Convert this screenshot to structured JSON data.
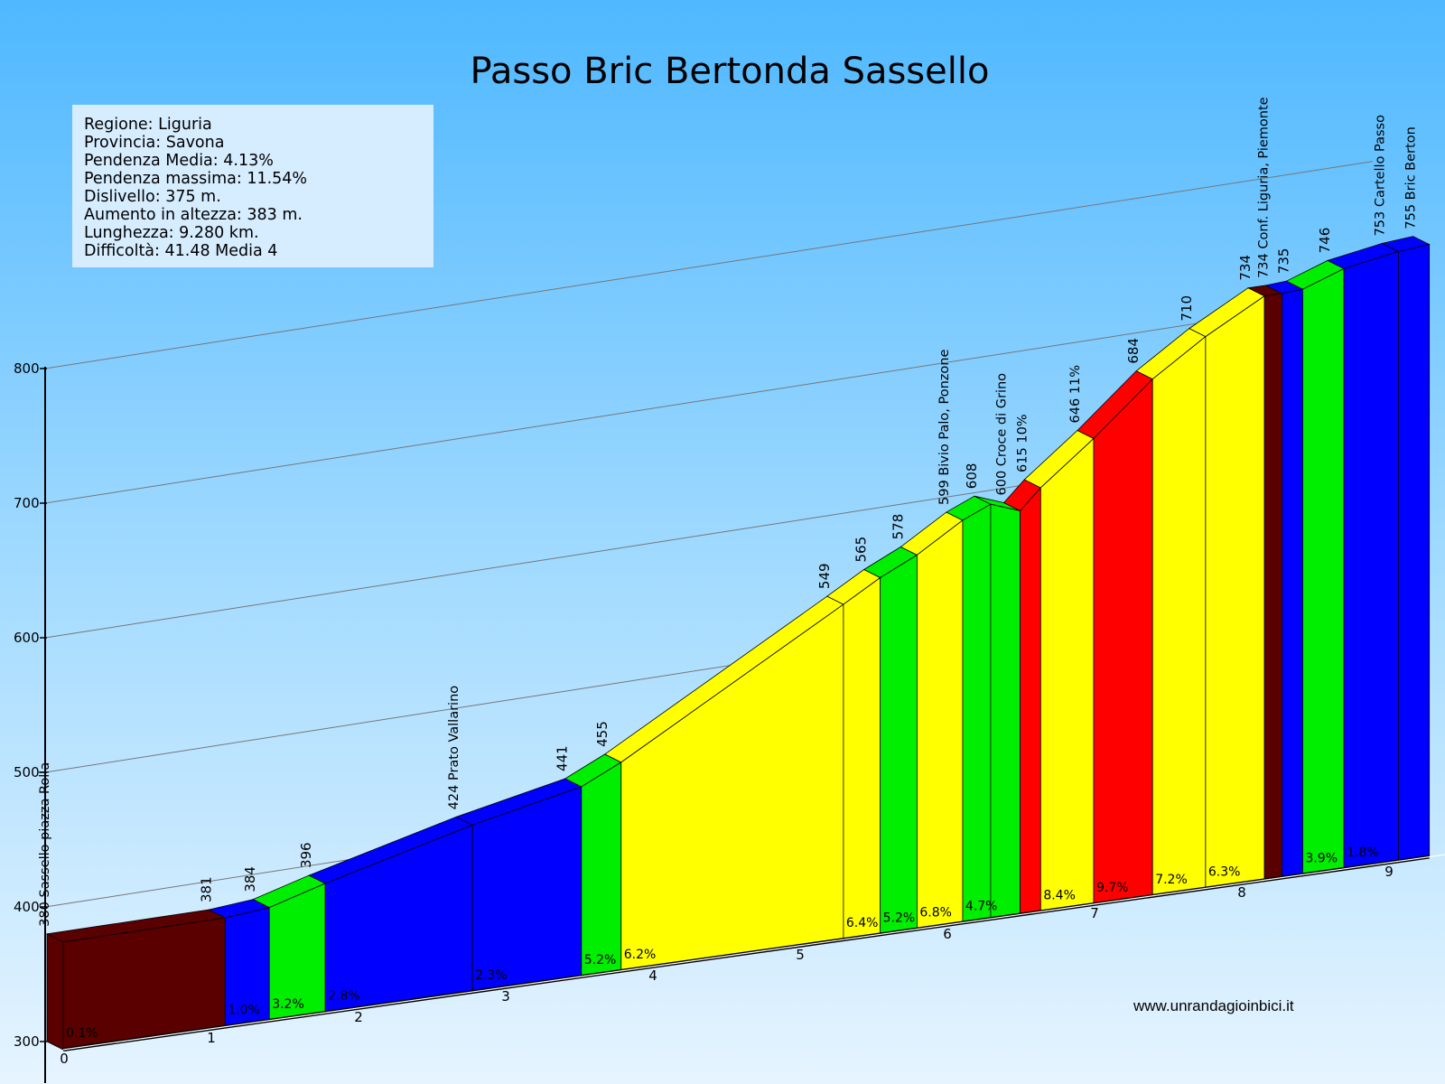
{
  "chart_data": {
    "type": "area",
    "title": "Passo Bric Bertonda Sassello",
    "y_axis": {
      "ticks": [
        300,
        400,
        500,
        600,
        700,
        800
      ],
      "ylim": [
        300,
        800
      ],
      "gridlines": true
    },
    "x_axis": {
      "ticks": [
        "0",
        "1",
        "2",
        "3",
        "4",
        "5",
        "6",
        "7",
        "8",
        "9"
      ],
      "xlim": [
        0,
        9.28
      ]
    },
    "info_box": [
      "Regione: Liguria",
      "Provincia: Savona",
      "Pendenza Media: 4.13%",
      "Pendenza massima: 11.54%",
      "Dislivello: 375 m.",
      "Aumento in altezza: 383 m.",
      "Lunghezza: 9.280 km.",
      "Difficoltà: 41.48 Media 4"
    ],
    "segments": [
      {
        "start_km": 0.0,
        "end_km": 1.1,
        "grade": "0.1%",
        "color": "#5a0000"
      },
      {
        "start_km": 1.1,
        "end_km": 1.4,
        "grade": "1.0%",
        "color": "#0000ff"
      },
      {
        "start_km": 1.4,
        "end_km": 1.78,
        "grade": "3.2%",
        "color": "#00ee00"
      },
      {
        "start_km": 1.78,
        "end_km": 2.78,
        "grade": "2.8%",
        "color": "#0000ff"
      },
      {
        "start_km": 2.78,
        "end_km": 3.52,
        "grade": "2.3%",
        "color": "#0000ff"
      },
      {
        "start_km": 3.52,
        "end_km": 3.79,
        "grade": "5.2%",
        "color": "#00ee00"
      },
      {
        "start_km": 3.79,
        "end_km": 5.3,
        "grade": "6.2%",
        "color": "#ffff00"
      },
      {
        "start_km": 5.3,
        "end_km": 5.55,
        "grade": "6.4%",
        "color": "#ffff00"
      },
      {
        "start_km": 5.55,
        "end_km": 5.8,
        "grade": "5.2%",
        "color": "#00ee00"
      },
      {
        "start_km": 5.8,
        "end_km": 6.11,
        "grade": "6.8%",
        "color": "#ffff00"
      },
      {
        "start_km": 6.11,
        "end_km": 6.3,
        "grade": "4.7%",
        "color": "#00ee00"
      },
      {
        "start_km": 6.3,
        "end_km": 6.5,
        "grade": "",
        "color": "#00ee00"
      },
      {
        "start_km": 6.5,
        "end_km": 6.64,
        "grade": "",
        "color": "#ff0000"
      },
      {
        "start_km": 6.64,
        "end_km": 7.0,
        "grade": "8.4%",
        "color": "#ffff00"
      },
      {
        "start_km": 7.0,
        "end_km": 7.4,
        "grade": "9.7%",
        "color": "#ff0000"
      },
      {
        "start_km": 7.4,
        "end_km": 7.76,
        "grade": "7.2%",
        "color": "#ffff00"
      },
      {
        "start_km": 7.76,
        "end_km": 8.16,
        "grade": "6.3%",
        "color": "#ffff00"
      },
      {
        "start_km": 8.16,
        "end_km": 8.28,
        "grade": "",
        "color": "#5a0000"
      },
      {
        "start_km": 8.28,
        "end_km": 8.42,
        "grade": "",
        "color": "#0000ff"
      },
      {
        "start_km": 8.42,
        "end_km": 8.7,
        "grade": "3.9%",
        "color": "#00ee00"
      },
      {
        "start_km": 8.7,
        "end_km": 9.07,
        "grade": "1.8%",
        "color": "#0000ff"
      },
      {
        "start_km": 9.07,
        "end_km": 9.28,
        "grade": "",
        "color": "#0000ff"
      }
    ],
    "profile_points": [
      {
        "km": 0.0,
        "alt": 380,
        "label": "380 Sassello piazza Rolla"
      },
      {
        "km": 1.1,
        "alt": 381,
        "label": "381"
      },
      {
        "km": 1.4,
        "alt": 384,
        "label": "384"
      },
      {
        "km": 1.78,
        "alt": 396,
        "label": "396"
      },
      {
        "km": 2.78,
        "alt": 424,
        "label": "424 Prato Vallarino"
      },
      {
        "km": 3.52,
        "alt": 441,
        "label": "441"
      },
      {
        "km": 3.79,
        "alt": 455,
        "label": "455"
      },
      {
        "km": 5.3,
        "alt": 549,
        "label": "549"
      },
      {
        "km": 5.55,
        "alt": 565,
        "label": "565"
      },
      {
        "km": 5.8,
        "alt": 578,
        "label": "578"
      },
      {
        "km": 6.11,
        "alt": 599,
        "label": "599 Bivio Palo, Ponzone"
      },
      {
        "km": 6.3,
        "alt": 608,
        "label": "608"
      },
      {
        "km": 6.5,
        "alt": 600,
        "label": "600 Croce di Grino"
      },
      {
        "km": 6.64,
        "alt": 615,
        "label": "615 10%"
      },
      {
        "km": 7.0,
        "alt": 646,
        "label": "646 11%"
      },
      {
        "km": 7.4,
        "alt": 684,
        "label": "684"
      },
      {
        "km": 7.76,
        "alt": 710,
        "label": "710"
      },
      {
        "km": 8.16,
        "alt": 734,
        "label": "734"
      },
      {
        "km": 8.28,
        "alt": 734,
        "label": "734 Conf. Liguria, Piemonte"
      },
      {
        "km": 8.42,
        "alt": 735,
        "label": "735"
      },
      {
        "km": 8.7,
        "alt": 746,
        "label": "746"
      },
      {
        "km": 9.07,
        "alt": 753,
        "label": "753 Cartello Passo"
      },
      {
        "km": 9.28,
        "alt": 755,
        "label": "755 Bric Berton"
      }
    ]
  },
  "footer": {
    "website": "www.unrandagioinbici.it"
  },
  "colors": {
    "sky_top": "#4fb8ff",
    "sky_bottom": "#e6f4ff",
    "info_box_bg": "#d6ecff"
  }
}
